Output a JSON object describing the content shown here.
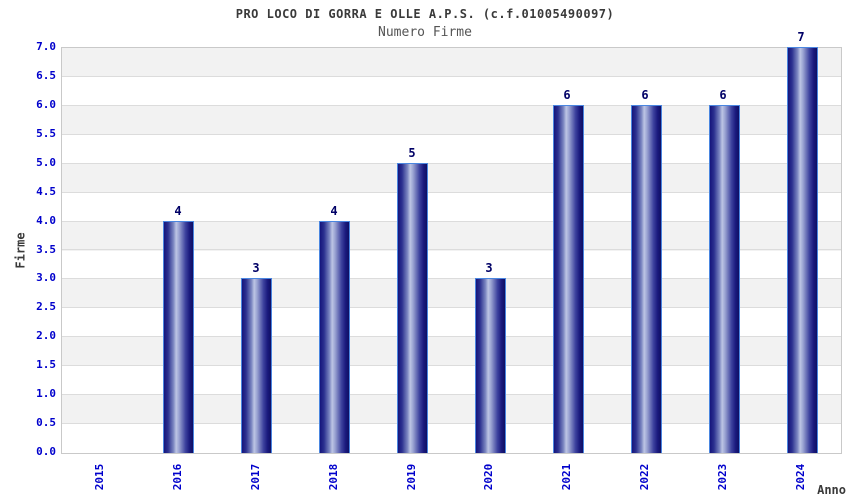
{
  "header": {
    "title": "PRO LOCO DI GORRA E OLLE A.P.S. (c.f.01005490097)",
    "subtitle": "Numero Firme"
  },
  "axes": {
    "x_label": "Anno",
    "y_label": "Firme"
  },
  "chart_data": {
    "type": "bar",
    "title": "PRO LOCO DI GORRA E OLLE A.P.S. (c.f.01005490097)",
    "subtitle": "Numero Firme",
    "xlabel": "Anno",
    "ylabel": "Firme",
    "categories": [
      "2015",
      "2016",
      "2017",
      "2018",
      "2019",
      "2020",
      "2021",
      "2022",
      "2023",
      "2024"
    ],
    "values": [
      0,
      4,
      3,
      4,
      5,
      3,
      6,
      6,
      6,
      7
    ],
    "ylim": [
      0,
      7
    ],
    "ytick_step": 0.5,
    "ytick_labels": [
      "0.0",
      "0.5",
      "1.0",
      "1.5",
      "2.0",
      "2.5",
      "3.0",
      "3.5",
      "4.0",
      "4.5",
      "5.0",
      "5.5",
      "6.0",
      "6.5",
      "7.0"
    ],
    "grid": true,
    "band_pattern": "alternating 0.5-unit gray/white bands, gray from 0.5-1.0 up to 6.5-7.0",
    "legend": "none",
    "value_labels_shown": true
  },
  "colors": {
    "tick_label": "#0000cc",
    "value_label": "#000066",
    "bar_dark": "#15157b",
    "bar_light": "#bdc5e4",
    "bar_border": "#4a86e0",
    "band_gray": "#f2f2f2",
    "gridline": "#dcdcdc",
    "plot_border": "#c9c9c9",
    "title_text": "#3a3a3a",
    "subtitle_text": "#555555"
  }
}
